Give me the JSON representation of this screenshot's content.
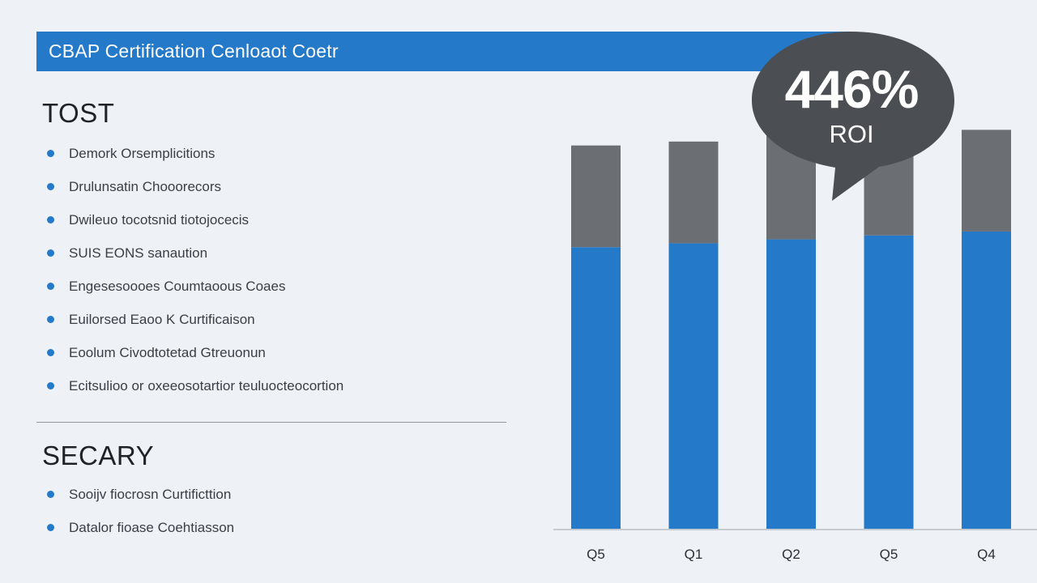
{
  "header": {
    "title": "CBAP Certification Cenloaot Coetr"
  },
  "sections": [
    {
      "heading": "TOST",
      "items": [
        "Demork Orsemplicitions",
        "Drulunsatin Chooorecors",
        "Dwileuo tocotsnid tiotojocecis",
        "SUIS EONS sanaution",
        "Engesesoooes Coumtaoous Coaes",
        "Euilorsed Eaoo K Curtificaison",
        "Eoolum Civodtotetad Gtreuonun",
        "Ecitsulioo or oxeeosotartior teuluocteocortion"
      ]
    },
    {
      "heading": "SECARY",
      "items": [
        "Sooijv fiocrosn Curtificttion",
        "Datalor fioase Coehtiasson"
      ]
    }
  ],
  "callout": {
    "value": "446%",
    "label": "ROI"
  },
  "colors": {
    "accent": "#2479c8",
    "bar_top": "#6b6e72",
    "callout_bg": "#4b4e52",
    "background": "#eef1f5"
  },
  "chart_data": {
    "type": "bar",
    "stacked": true,
    "categories": [
      "Q5",
      "Q1",
      "Q2",
      "Q5",
      "Q4"
    ],
    "series": [
      {
        "values": [
          72,
          73,
          74,
          75,
          76
        ]
      },
      {
        "values": [
          26,
          26,
          27,
          26,
          26
        ]
      }
    ],
    "ylim": [
      0,
      100
    ],
    "grid": false,
    "legend": "none"
  }
}
